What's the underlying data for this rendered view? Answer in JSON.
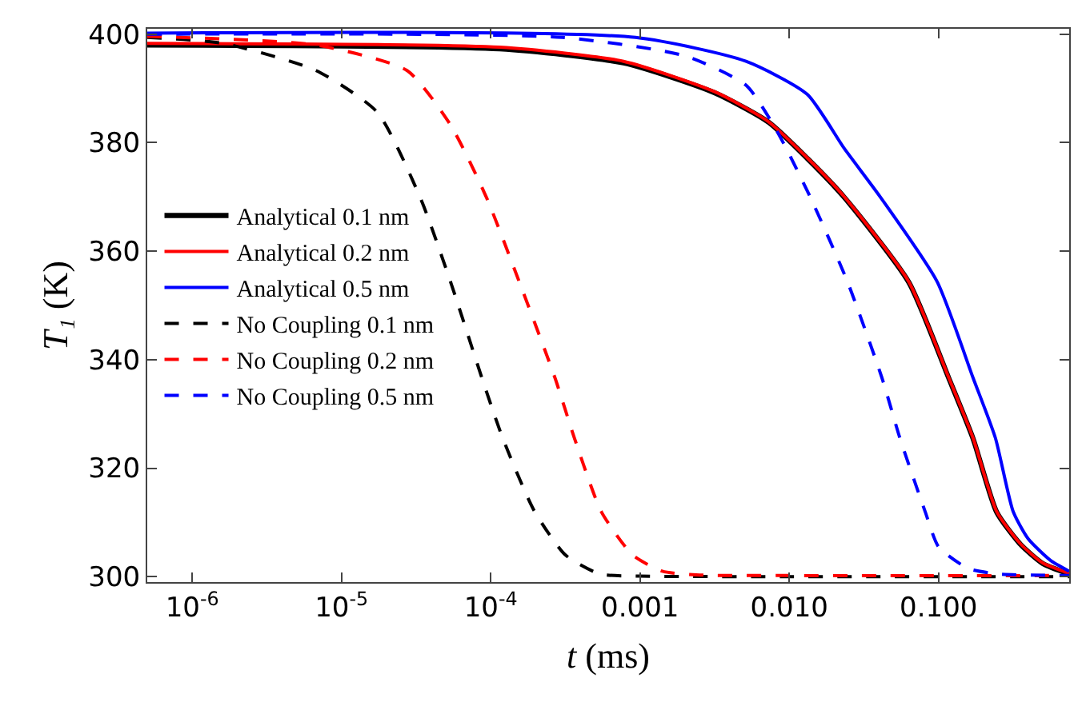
{
  "chart_data": {
    "type": "line",
    "xlabel": "t (ms)",
    "ylabel": "T₁ (K)",
    "log": "x",
    "legend": "left",
    "xlim": [
      5e-07,
      0.75
    ],
    "ylim": [
      299,
      401
    ],
    "xticks": [
      {
        "value": 1e-06,
        "label": "10$^{-6}$"
      },
      {
        "value": 1e-05,
        "label": "10$^{-5}$"
      },
      {
        "value": 0.0001,
        "label": "10$^{-4}$"
      },
      {
        "value": 0.001,
        "label": "0.001"
      },
      {
        "value": 0.01,
        "label": "0.010"
      },
      {
        "value": 0.1,
        "label": "0.100"
      }
    ],
    "yticks": [
      300,
      320,
      340,
      360,
      380,
      400
    ],
    "series": [
      {
        "name": "Analytical 0.1 nm",
        "color": "#000000",
        "line_style": "solid",
        "x": [
          5e-07,
          0.000115,
          0.000776,
          0.00316,
          0.00724,
          0.0132,
          0.0234,
          0.0631,
          0.117,
          0.17,
          0.245,
          0.355,
          0.501,
          0.75
        ],
        "values": [
          398.0,
          397.3,
          394.7,
          389.2,
          383.8,
          377.1,
          369.9,
          354.3,
          336.6,
          325.5,
          311.9,
          305.9,
          302.4,
          300.5
        ]
      },
      {
        "name": "Analytical 0.2 nm",
        "color": "#ff0000",
        "line_style": "solid",
        "x": [
          5e-07,
          0.000115,
          0.000776,
          0.00316,
          0.00724,
          0.0132,
          0.0234,
          0.0631,
          0.117,
          0.17,
          0.245,
          0.355,
          0.501,
          0.75
        ],
        "values": [
          398.3,
          397.6,
          395,
          389.4,
          383.9,
          377.2,
          370,
          354.4,
          336.7,
          325.6,
          312,
          306,
          302.5,
          300.6
        ]
      },
      {
        "name": "Analytical 0.5 nm",
        "color": "#0000ff",
        "line_style": "solid",
        "x": [
          5e-07,
          0.000933,
          0.00513,
          0.0132,
          0.0234,
          0.0407,
          0.0977,
          0.17,
          0.24,
          0.316,
          0.398,
          0.562,
          0.75
        ],
        "values": [
          400.2,
          399.4,
          395,
          388.9,
          378.9,
          370,
          354.4,
          336.7,
          325.6,
          312,
          307,
          303,
          301
        ]
      },
      {
        "name": "No Coupling 0.1 nm",
        "color": "#000000",
        "line_style": "dashed",
        "x": [
          5e-07,
          1.62e-06,
          6.76e-06,
          1.74e-05,
          3.39e-05,
          5.37e-05,
          8.71e-05,
          0.00012,
          0.000195,
          0.000316,
          0.000537,
          0.001,
          0.01,
          0.75
        ],
        "values": [
          399.4,
          398.3,
          393.3,
          385.6,
          369.7,
          354.4,
          336.7,
          325.6,
          312.2,
          304,
          300.5,
          300.1,
          300.0,
          300.0
        ]
      },
      {
        "name": "No Coupling 0.2 nm",
        "color": "#ff0000",
        "line_style": "dashed",
        "x": [
          5e-07,
          6.76e-06,
          2.75e-05,
          5.37e-05,
          9.33e-05,
          0.000155,
          0.000269,
          0.000363,
          0.00055,
          0.000891,
          0.00141,
          0.00251,
          0.01,
          0.75
        ],
        "values": [
          399.6,
          398,
          393.3,
          383.3,
          370,
          354.4,
          336.7,
          325.6,
          312,
          304,
          301,
          300.3,
          300.2,
          300.2
        ]
      },
      {
        "name": "No Coupling 0.5 nm",
        "color": "#0000ff",
        "line_style": "dashed",
        "x": [
          5e-07,
          0.000302,
          0.002,
          0.00513,
          0.00832,
          0.0138,
          0.0245,
          0.0417,
          0.055,
          0.0813,
          0.1,
          0.158,
          0.251,
          0.75
        ],
        "values": [
          400,
          399.4,
          396,
          390.6,
          382,
          370,
          354.4,
          336.7,
          325.6,
          312,
          305.5,
          301.5,
          300.5,
          300.2
        ]
      }
    ]
  }
}
